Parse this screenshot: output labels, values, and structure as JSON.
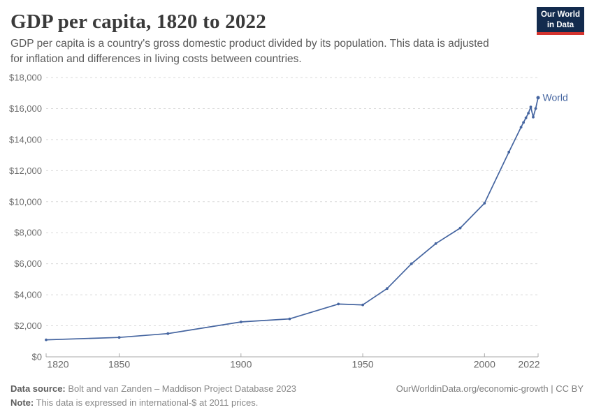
{
  "header": {
    "title": "GDP per capita, 1820 to 2022",
    "subtitle": "GDP per capita is a country's gross domestic product divided by its population. This data is adjusted for inflation and differences in living costs between countries.",
    "logo": {
      "line1": "Our World",
      "line2": "in Data"
    }
  },
  "colors": {
    "series_line": "#4565a0",
    "logo_background": "#132b4e",
    "logo_accent": "#d4342f",
    "gridline": "#dadada",
    "axis_line": "#a8a8a8",
    "y_tick_label": "#6f6f6f",
    "x_tick_label": "#686868"
  },
  "chart_data": {
    "type": "line",
    "title": "GDP per capita, 1820 to 2022",
    "xlabel": "",
    "ylabel": "",
    "x_range": [
      1820,
      2022
    ],
    "ylim": [
      0,
      18000
    ],
    "grid": "horizontal-dashed",
    "legend_position": "end-of-line-label",
    "y_ticks": [
      {
        "value": 0,
        "label": "$0"
      },
      {
        "value": 2000,
        "label": "$2,000"
      },
      {
        "value": 4000,
        "label": "$4,000"
      },
      {
        "value": 6000,
        "label": "$6,000"
      },
      {
        "value": 8000,
        "label": "$8,000"
      },
      {
        "value": 10000,
        "label": "$10,000"
      },
      {
        "value": 12000,
        "label": "$12,000"
      },
      {
        "value": 14000,
        "label": "$14,000"
      },
      {
        "value": 16000,
        "label": "$16,000"
      },
      {
        "value": 18000,
        "label": "$18,000"
      }
    ],
    "x_ticks": [
      {
        "value": 1820,
        "label": "1820"
      },
      {
        "value": 1850,
        "label": "1850"
      },
      {
        "value": 1900,
        "label": "1900"
      },
      {
        "value": 1950,
        "label": "1950"
      },
      {
        "value": 2000,
        "label": "2000"
      },
      {
        "value": 2022,
        "label": "2022"
      }
    ],
    "series": [
      {
        "name": "World",
        "color": "#4565a0",
        "points": [
          [
            1820,
            1100
          ],
          [
            1850,
            1250
          ],
          [
            1870,
            1500
          ],
          [
            1900,
            2250
          ],
          [
            1920,
            2450
          ],
          [
            1940,
            3400
          ],
          [
            1950,
            3350
          ],
          [
            1960,
            4400
          ],
          [
            1970,
            6000
          ],
          [
            1980,
            7300
          ],
          [
            1990,
            8300
          ],
          [
            2000,
            9900
          ],
          [
            2010,
            13200
          ],
          [
            2015,
            14800
          ],
          [
            2016,
            15100
          ],
          [
            2017,
            15400
          ],
          [
            2018,
            15700
          ],
          [
            2019,
            16100
          ],
          [
            2020,
            15450
          ],
          [
            2021,
            16000
          ],
          [
            2022,
            16700
          ]
        ]
      }
    ]
  },
  "footer": {
    "source_label": "Data source:",
    "source_text": " Bolt and van Zanden – Maddison Project Database 2023",
    "note_label": "Note:",
    "note_text": " This data is expressed in international-$ at 2011 prices.",
    "credit": "OurWorldinData.org/economic-growth | CC BY"
  }
}
